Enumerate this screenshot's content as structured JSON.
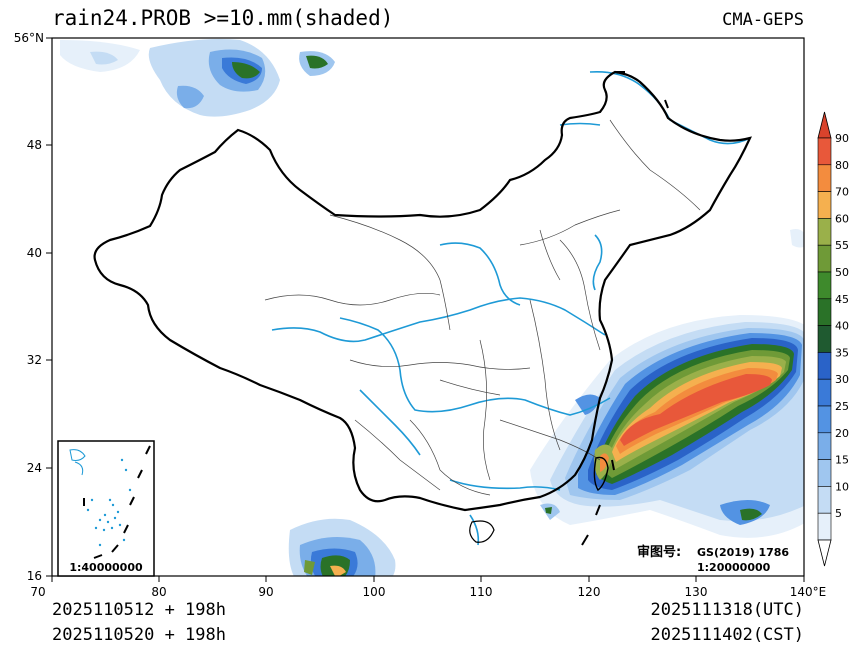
{
  "header": {
    "title": "rain24.PROB >=10.mm(shaded)",
    "source": "CMA-GEPS"
  },
  "footer": {
    "init_utc": "2025110512 + 198h",
    "init_cst": "2025110520 + 198h",
    "valid_utc": "2025111318(UTC)",
    "valid_cst": "2025111402(CST)"
  },
  "map": {
    "lat_labels": [
      "56°N",
      "48",
      "40",
      "32",
      "24",
      "16"
    ],
    "lon_labels": [
      "70",
      "80",
      "90",
      "100",
      "110",
      "120",
      "130",
      "140°E"
    ],
    "approval_label": "审图号:",
    "approval_code": "GS(2019) 1786",
    "main_scale": "1:20000000",
    "inset_scale": "1:40000000"
  },
  "colorbar": {
    "labels": [
      "90",
      "80",
      "70",
      "60",
      "55",
      "50",
      "45",
      "40",
      "35",
      "30",
      "25",
      "20",
      "15",
      "10",
      "5"
    ],
    "colors": [
      "#e8583a",
      "#f38c3e",
      "#f5b04f",
      "#9ab04a",
      "#6f9a37",
      "#3e8a2c",
      "#2a7228",
      "#1f5a30",
      "#2a63c8",
      "#3a7ad8",
      "#5393e3",
      "#7aaee9",
      "#9fc6ef",
      "#c4dcf4",
      "#e6f0fa"
    ],
    "top_color": "#d9432c"
  },
  "colors": {
    "river": "#1e9ad6",
    "border": "#000000",
    "province": "#444444"
  }
}
